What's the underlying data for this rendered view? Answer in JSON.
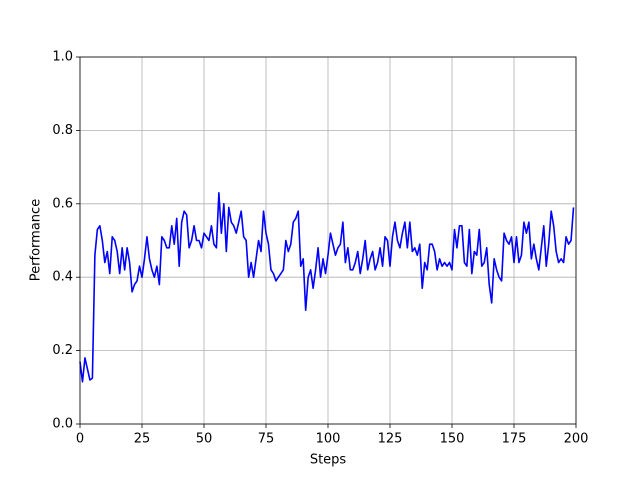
{
  "chart_data": {
    "type": "line",
    "xlabel": "Steps",
    "ylabel": "Performance",
    "color": "#0000ff",
    "grid": true,
    "xlim": [
      0,
      200
    ],
    "xticks": [
      0,
      25,
      50,
      75,
      100,
      125,
      150,
      175,
      200
    ],
    "ylim": [
      0,
      1
    ],
    "yticks": [
      {
        "value": 0,
        "label": "0.0"
      },
      {
        "value": 0.2,
        "label": "0.2"
      },
      {
        "value": 0.4,
        "label": "0.4"
      },
      {
        "value": 0.6,
        "label": "0.6"
      },
      {
        "value": 0.8,
        "label": "0.8"
      },
      {
        "value": 1,
        "label": "1.0"
      }
    ],
    "x": [
      0,
      1,
      2,
      3,
      4,
      5,
      6,
      7,
      8,
      9,
      10,
      11,
      12,
      13,
      14,
      15,
      16,
      17,
      18,
      19,
      20,
      21,
      22,
      23,
      24,
      25,
      26,
      27,
      28,
      29,
      30,
      31,
      32,
      33,
      34,
      35,
      36,
      37,
      38,
      39,
      40,
      41,
      42,
      43,
      44,
      45,
      46,
      47,
      48,
      49,
      50,
      51,
      52,
      53,
      54,
      55,
      56,
      57,
      58,
      59,
      60,
      61,
      62,
      63,
      64,
      65,
      66,
      67,
      68,
      69,
      70,
      71,
      72,
      73,
      74,
      75,
      76,
      77,
      78,
      79,
      80,
      81,
      82,
      83,
      84,
      85,
      86,
      87,
      88,
      89,
      90,
      91,
      92,
      93,
      94,
      95,
      96,
      97,
      98,
      99,
      100,
      101,
      102,
      103,
      104,
      105,
      106,
      107,
      108,
      109,
      110,
      111,
      112,
      113,
      114,
      115,
      116,
      117,
      118,
      119,
      120,
      121,
      122,
      123,
      124,
      125,
      126,
      127,
      128,
      129,
      130,
      131,
      132,
      133,
      134,
      135,
      136,
      137,
      138,
      139,
      140,
      141,
      142,
      143,
      144,
      145,
      146,
      147,
      148,
      149,
      150,
      151,
      152,
      153,
      154,
      155,
      156,
      157,
      158,
      159,
      160,
      161,
      162,
      163,
      164,
      165,
      166,
      167,
      168,
      169,
      170,
      171,
      172,
      173,
      174,
      175,
      176,
      177,
      178,
      179,
      180,
      181,
      182,
      183,
      184,
      185,
      186,
      187,
      188,
      189,
      190,
      191,
      192,
      193,
      194,
      195,
      196,
      197,
      198,
      199
    ],
    "values": [
      0.17,
      0.115,
      0.18,
      0.15,
      0.12,
      0.125,
      0.46,
      0.53,
      0.54,
      0.5,
      0.44,
      0.47,
      0.41,
      0.51,
      0.5,
      0.47,
      0.41,
      0.48,
      0.42,
      0.48,
      0.44,
      0.36,
      0.38,
      0.39,
      0.43,
      0.4,
      0.45,
      0.51,
      0.45,
      0.42,
      0.4,
      0.43,
      0.38,
      0.51,
      0.5,
      0.48,
      0.48,
      0.54,
      0.49,
      0.56,
      0.43,
      0.55,
      0.58,
      0.57,
      0.48,
      0.5,
      0.54,
      0.5,
      0.5,
      0.48,
      0.52,
      0.51,
      0.5,
      0.54,
      0.49,
      0.48,
      0.63,
      0.52,
      0.6,
      0.47,
      0.59,
      0.55,
      0.54,
      0.52,
      0.55,
      0.58,
      0.51,
      0.5,
      0.4,
      0.44,
      0.4,
      0.45,
      0.5,
      0.47,
      0.58,
      0.52,
      0.49,
      0.42,
      0.41,
      0.39,
      0.4,
      0.41,
      0.42,
      0.5,
      0.47,
      0.49,
      0.55,
      0.56,
      0.58,
      0.43,
      0.45,
      0.31,
      0.4,
      0.42,
      0.37,
      0.42,
      0.48,
      0.4,
      0.45,
      0.41,
      0.46,
      0.52,
      0.49,
      0.46,
      0.48,
      0.49,
      0.55,
      0.44,
      0.48,
      0.42,
      0.42,
      0.44,
      0.47,
      0.41,
      0.45,
      0.5,
      0.42,
      0.45,
      0.47,
      0.42,
      0.44,
      0.48,
      0.43,
      0.51,
      0.5,
      0.43,
      0.51,
      0.55,
      0.5,
      0.48,
      0.52,
      0.55,
      0.48,
      0.55,
      0.47,
      0.48,
      0.46,
      0.49,
      0.37,
      0.44,
      0.42,
      0.49,
      0.49,
      0.47,
      0.42,
      0.45,
      0.43,
      0.44,
      0.43,
      0.44,
      0.42,
      0.53,
      0.48,
      0.54,
      0.54,
      0.44,
      0.43,
      0.53,
      0.41,
      0.47,
      0.46,
      0.53,
      0.43,
      0.44,
      0.48,
      0.38,
      0.33,
      0.45,
      0.42,
      0.4,
      0.39,
      0.52,
      0.5,
      0.49,
      0.51,
      0.44,
      0.51,
      0.44,
      0.46,
      0.55,
      0.52,
      0.55,
      0.45,
      0.49,
      0.45,
      0.42,
      0.48,
      0.54,
      0.43,
      0.49,
      0.58,
      0.54,
      0.47,
      0.44,
      0.45,
      0.44,
      0.51,
      0.49,
      0.5,
      0.59
    ]
  }
}
